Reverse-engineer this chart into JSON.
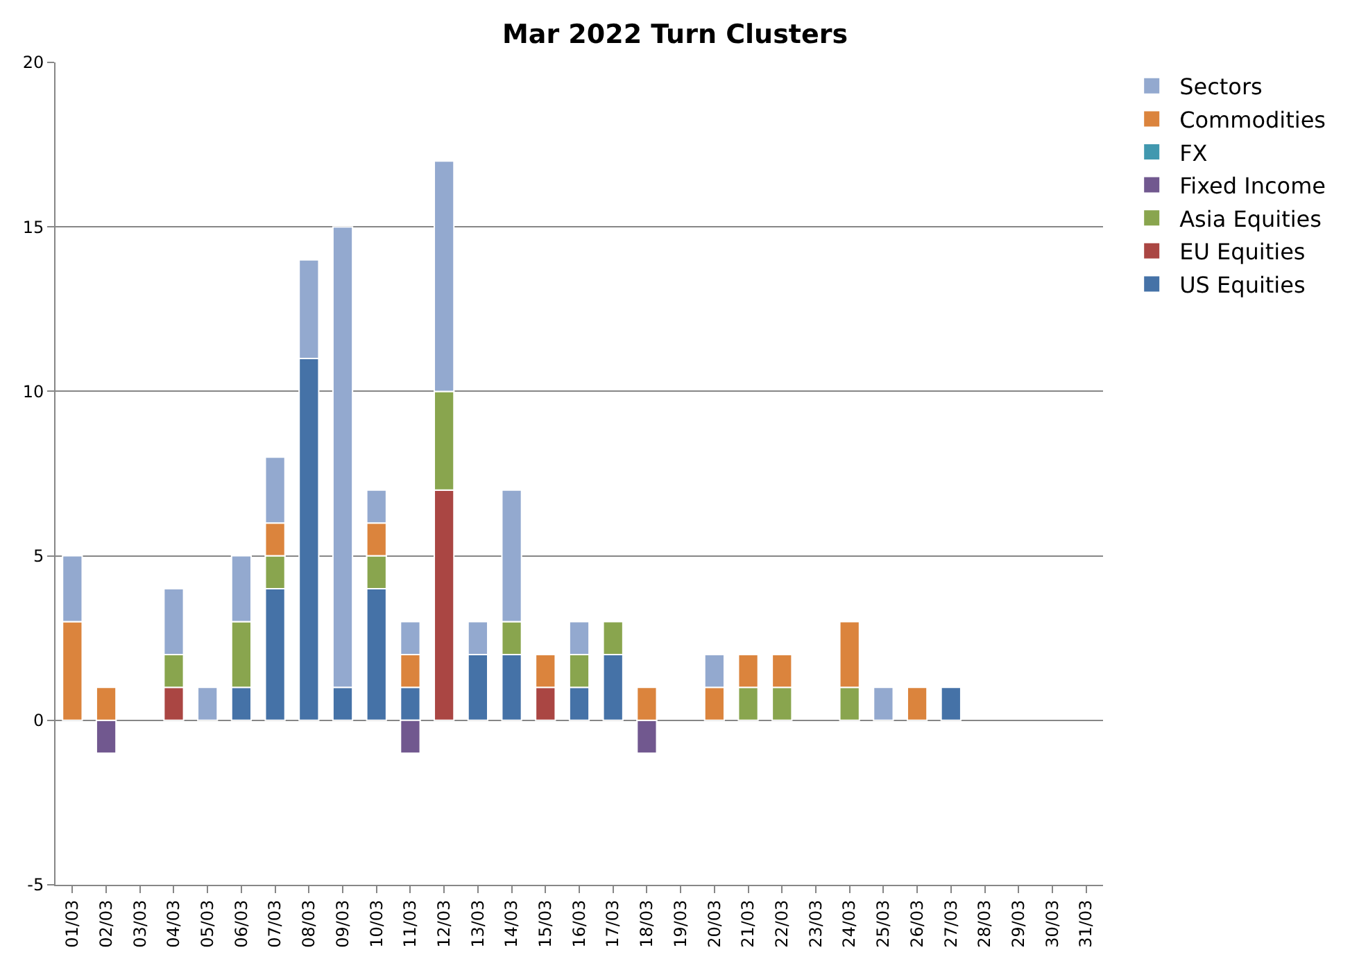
{
  "chart_data": {
    "type": "bar",
    "title": "Mar 2022 Turn Clusters",
    "stacked": true,
    "categories": [
      "01/03",
      "02/03",
      "03/03",
      "04/03",
      "05/03",
      "06/03",
      "07/03",
      "08/03",
      "09/03",
      "10/03",
      "11/03",
      "12/03",
      "13/03",
      "14/03",
      "15/03",
      "16/03",
      "17/03",
      "18/03",
      "19/03",
      "20/03",
      "21/03",
      "22/03",
      "23/03",
      "24/03",
      "25/03",
      "26/03",
      "27/03",
      "28/03",
      "29/03",
      "30/03",
      "31/03"
    ],
    "series": [
      {
        "name": "US Equities",
        "color": "#4572a7",
        "values": [
          null,
          null,
          null,
          null,
          null,
          1,
          4,
          11,
          1,
          4,
          1,
          null,
          2,
          2,
          null,
          1,
          2,
          null,
          null,
          null,
          null,
          null,
          null,
          null,
          null,
          null,
          1,
          null,
          null,
          null,
          null
        ]
      },
      {
        "name": "EU Equities",
        "color": "#aa4643",
        "values": [
          null,
          null,
          null,
          1,
          null,
          null,
          null,
          null,
          null,
          null,
          null,
          7,
          null,
          null,
          1,
          null,
          null,
          null,
          null,
          null,
          null,
          null,
          null,
          null,
          null,
          null,
          null,
          null,
          null,
          null,
          null
        ]
      },
      {
        "name": "Asia Equities",
        "color": "#89a54e",
        "values": [
          null,
          null,
          null,
          1,
          null,
          2,
          1,
          null,
          null,
          1,
          null,
          3,
          null,
          1,
          null,
          1,
          1,
          null,
          null,
          null,
          1,
          1,
          null,
          1,
          null,
          null,
          null,
          null,
          null,
          null,
          null
        ]
      },
      {
        "name": "Fixed Income",
        "color": "#71588f",
        "values": [
          null,
          -1,
          null,
          null,
          null,
          null,
          null,
          null,
          null,
          null,
          -1,
          null,
          null,
          null,
          null,
          null,
          null,
          -1,
          null,
          null,
          null,
          null,
          null,
          null,
          null,
          null,
          null,
          null,
          null,
          null,
          null
        ]
      },
      {
        "name": "FX",
        "color": "#4198af",
        "values": [
          null,
          null,
          null,
          null,
          null,
          null,
          null,
          null,
          null,
          null,
          null,
          null,
          null,
          null,
          null,
          null,
          null,
          null,
          null,
          null,
          null,
          null,
          null,
          null,
          null,
          null,
          null,
          null,
          null,
          null,
          null
        ]
      },
      {
        "name": "Commodities",
        "color": "#db843d",
        "values": [
          3,
          1,
          null,
          null,
          null,
          null,
          1,
          null,
          null,
          1,
          1,
          null,
          null,
          null,
          1,
          null,
          null,
          1,
          null,
          1,
          1,
          1,
          null,
          2,
          null,
          1,
          null,
          null,
          null,
          null,
          null
        ]
      },
      {
        "name": "Sectors",
        "color": "#93a9cf",
        "values": [
          2,
          null,
          null,
          2,
          1,
          2,
          2,
          3,
          14,
          1,
          1,
          7,
          1,
          4,
          null,
          1,
          null,
          null,
          null,
          1,
          null,
          null,
          null,
          null,
          1,
          null,
          null,
          null,
          null,
          null,
          null
        ]
      }
    ],
    "ylim": [
      -5,
      20
    ],
    "yticks": [
      -5,
      0,
      5,
      10,
      15,
      20
    ],
    "grid": "y",
    "legend": "top right"
  }
}
